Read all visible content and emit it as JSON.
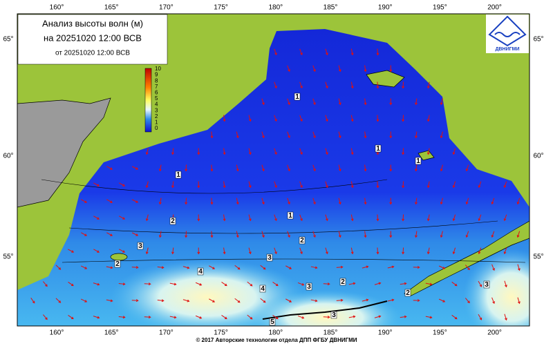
{
  "title": {
    "line1": "Анализ высоты волн (м)",
    "line2": "на 20251020 12:00 ВСВ",
    "line3": "от 20251020 12:00 ВСВ"
  },
  "logo": {
    "label": "ДВНИГМИ"
  },
  "colorbar": {
    "ticks": [
      "0",
      "1",
      "2",
      "3",
      "4",
      "5",
      "6",
      "7",
      "8",
      "9",
      "10"
    ]
  },
  "longitude_labels": [
    "160°",
    "165°",
    "170°",
    "175°",
    "180°",
    "185°",
    "190°",
    "195°",
    "200°"
  ],
  "latitude_labels": [
    "65°",
    "60°",
    "55°"
  ],
  "contour_labels": [
    "1",
    "1",
    "1",
    "1",
    "1",
    "2",
    "2",
    "2",
    "2",
    "2",
    "3",
    "3",
    "3",
    "3",
    "3",
    "4",
    "4",
    "5"
  ],
  "footer": "© 2017 Авторские технологии отдела ДПП ФГБУ ДВНИГМИ"
}
